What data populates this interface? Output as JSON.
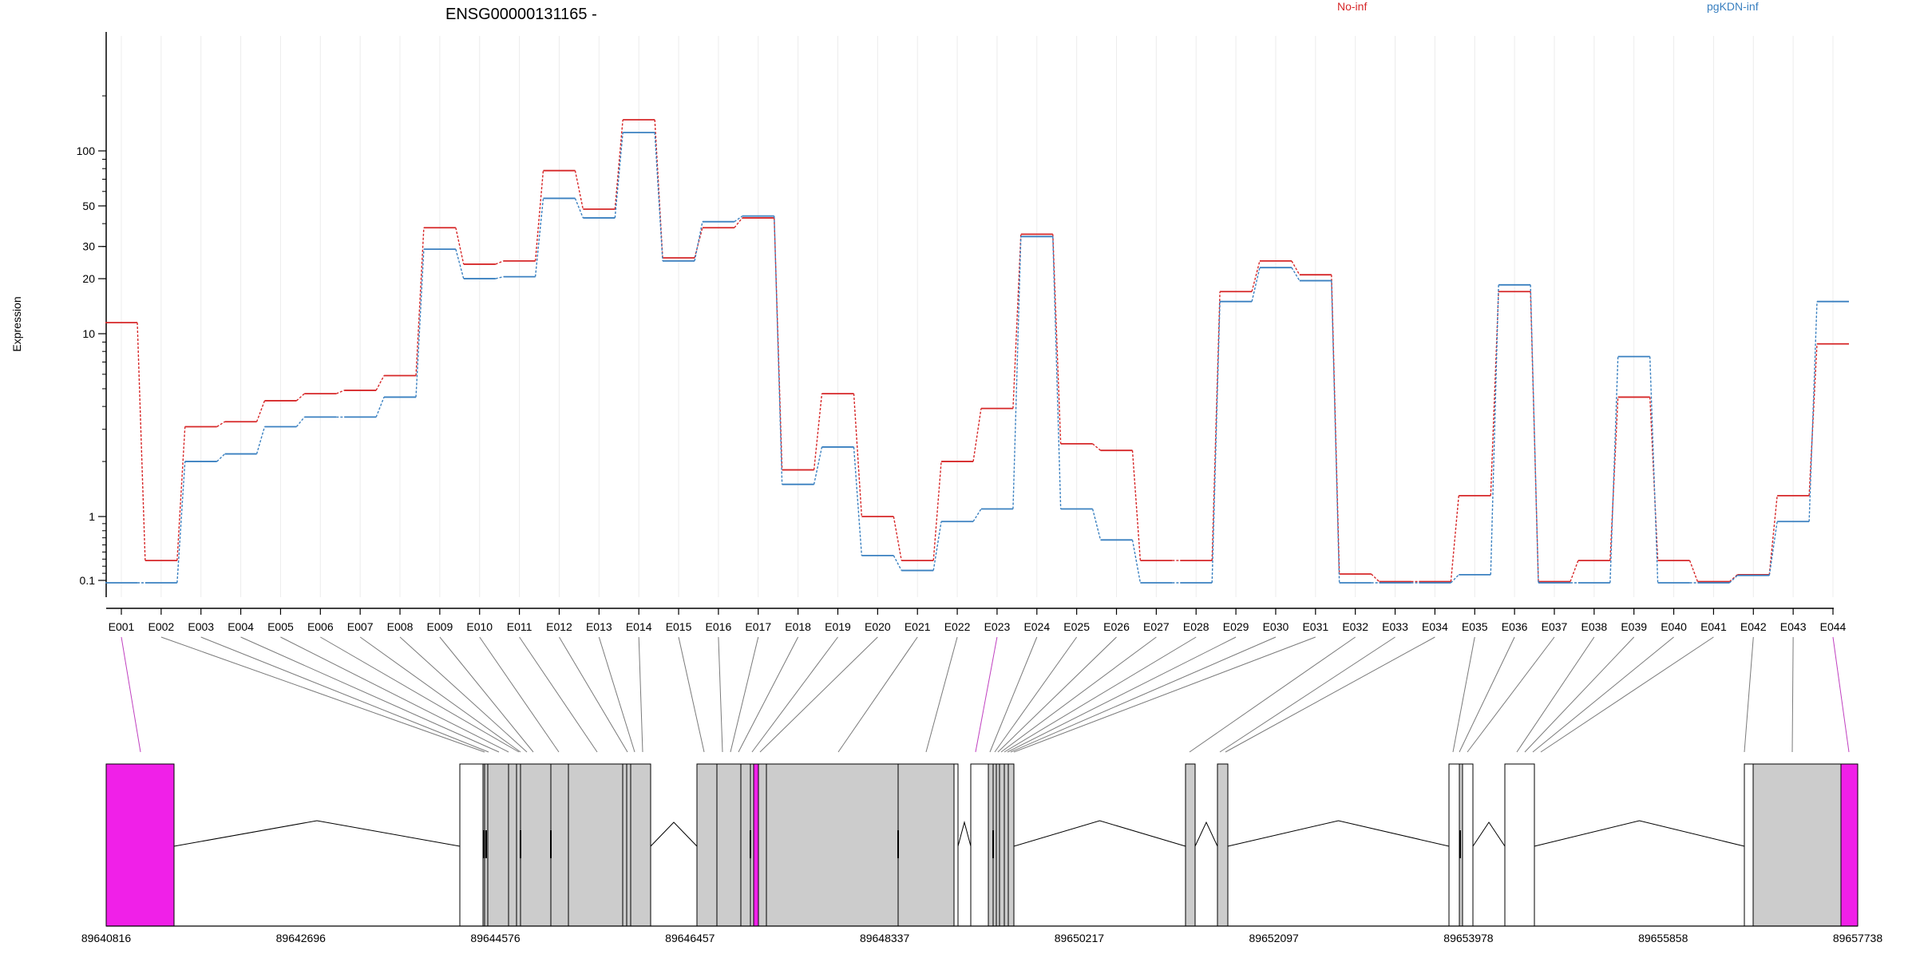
{
  "chart_data": {
    "type": "line",
    "title": "ENSG00000131165 -",
    "ylabel": "Expression",
    "yscale": "log",
    "y_ticks": [
      0.1,
      1,
      10,
      20,
      30,
      50,
      100
    ],
    "y_tick_labels": [
      "0.1",
      "1",
      "10",
      "20",
      "30",
      "50",
      "100"
    ],
    "grid": true,
    "legend_placement": "top",
    "categories": [
      "E001",
      "E002",
      "E003",
      "E004",
      "E005",
      "E006",
      "E007",
      "E008",
      "E009",
      "E010",
      "E011",
      "E012",
      "E013",
      "E014",
      "E015",
      "E016",
      "E017",
      "E018",
      "E019",
      "E020",
      "E021",
      "E022",
      "E023",
      "E024",
      "E025",
      "E026",
      "E027",
      "E028",
      "E029",
      "E030",
      "E031",
      "E032",
      "E033",
      "E034",
      "E035",
      "E036",
      "E037",
      "E038",
      "E039",
      "E040",
      "E041",
      "E042",
      "E043",
      "E044"
    ],
    "series": [
      {
        "name": "No-inf",
        "color": "#d62728",
        "values": [
          11.5,
          0.38,
          3.1,
          3.3,
          4.3,
          4.7,
          4.9,
          5.9,
          38,
          24,
          25,
          78,
          48,
          148,
          26,
          38,
          43,
          1.8,
          4.7,
          1.0,
          0.38,
          2.0,
          3.9,
          35,
          2.5,
          2.3,
          0.38,
          0.38,
          17,
          25,
          21,
          0.19,
          0.09,
          0.09,
          1.3,
          17,
          0.09,
          0.38,
          4.5,
          0.38,
          0.09,
          0.18,
          1.3,
          8.8
        ]
      },
      {
        "name": "pgKDN-inf",
        "color": "#3a80c0",
        "values": [
          0.08,
          0.08,
          2.0,
          2.2,
          3.1,
          3.5,
          3.5,
          4.5,
          29,
          20,
          20.5,
          55,
          43,
          126,
          25,
          41,
          44,
          1.5,
          2.4,
          0.45,
          0.24,
          0.93,
          1.1,
          34,
          1.1,
          0.67,
          0.08,
          0.08,
          15,
          23,
          19.5,
          0.08,
          0.08,
          0.08,
          0.18,
          18.5,
          0.08,
          0.08,
          7.5,
          0.08,
          0.08,
          0.17,
          0.93,
          15
        ]
      }
    ]
  },
  "gene_model": {
    "coordinate_labels": [
      "89640816",
      "89642696",
      "89644576",
      "89646457",
      "89648337",
      "89650217",
      "89652097",
      "89653978",
      "89655858",
      "89657738"
    ],
    "coordinate_range": [
      89640816,
      89657738
    ],
    "highlight_color": "#f020e8",
    "block_fill": "#cccccc"
  }
}
